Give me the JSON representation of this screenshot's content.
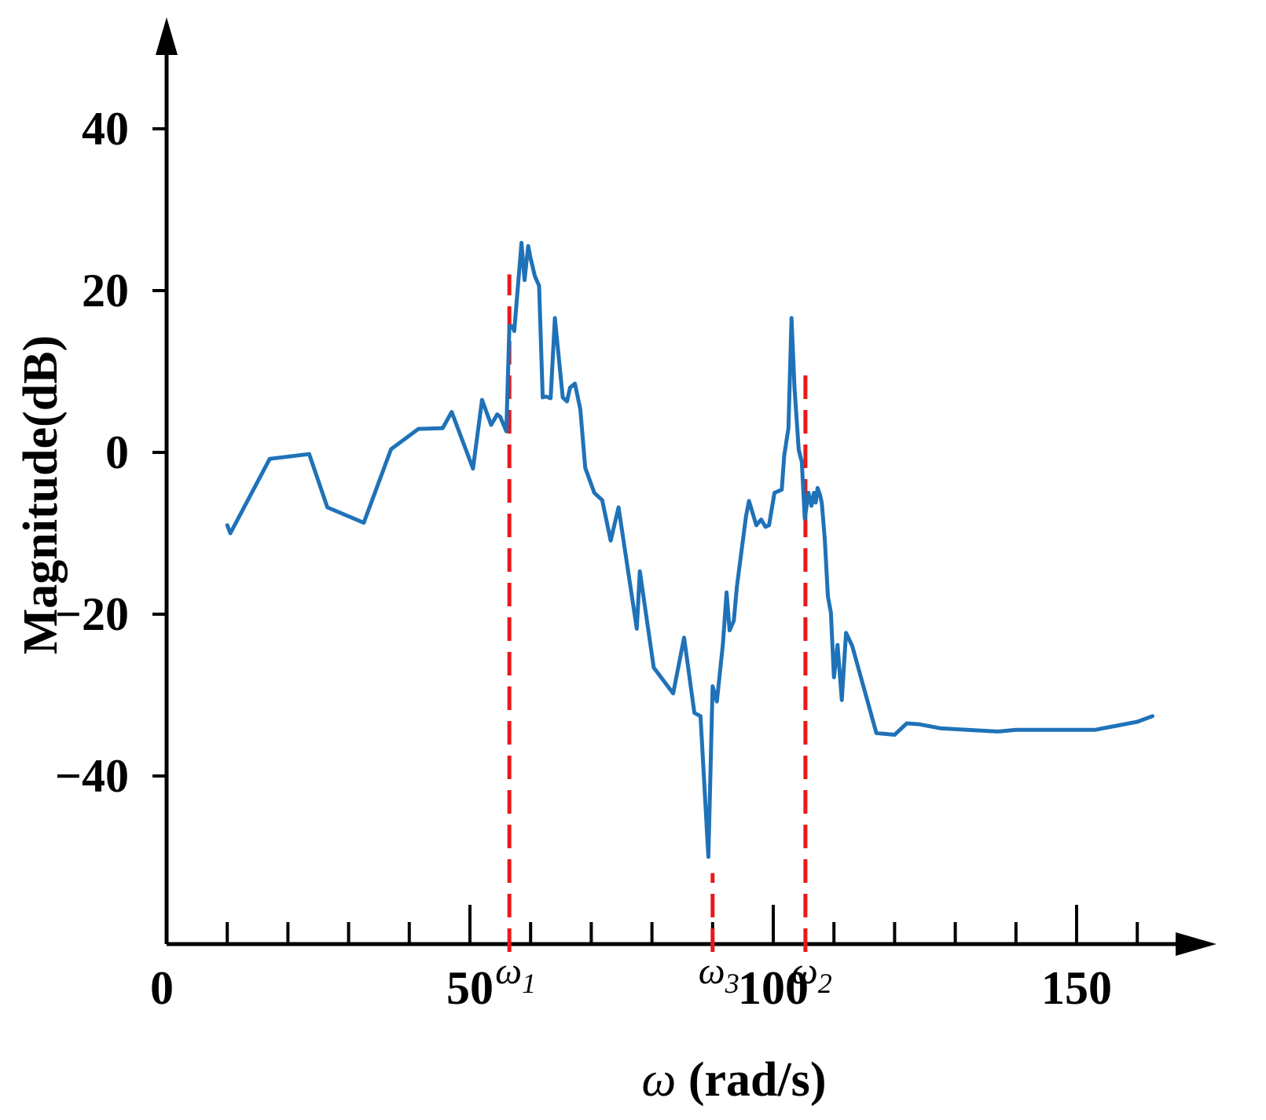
{
  "chart_data": {
    "type": "line",
    "title": "",
    "xlabel_symbol": "ω",
    "xlabel_unit": " (rad/s)",
    "ylabel": "Magnitude(dB)",
    "xlim": [
      0,
      165
    ],
    "ylim": [
      -60,
      50
    ],
    "x_ticks": [
      0,
      50,
      100,
      150
    ],
    "x_tick_labels": [
      "0",
      "50",
      "100",
      "150"
    ],
    "x_minor_step": 10,
    "y_ticks": [
      -40,
      -20,
      0,
      20,
      40
    ],
    "y_tick_labels": [
      "−40",
      "−20",
      "0",
      "20",
      "40"
    ],
    "grid": false,
    "colors": {
      "series": "#1f72b8",
      "markers": "#e8191b",
      "axis": "#000000"
    },
    "series": [
      {
        "x": [
          10.0,
          10.5,
          17.0,
          23.5,
          26.5,
          32.5,
          37.0,
          41.5,
          45.5,
          47.0,
          50.5,
          52.0,
          53.5,
          54.5,
          55.0,
          56.0,
          56.5,
          57.0,
          57.3,
          57.8,
          58.5,
          59.0,
          59.6,
          60.0,
          60.7,
          61.4,
          62.0,
          62.5,
          63.3,
          64.0,
          65.3,
          66.0,
          66.5,
          67.3,
          68.2,
          69.0,
          70.5,
          71.8,
          73.2,
          74.5,
          77.5,
          78.0,
          80.3,
          83.5,
          85.3,
          87.0,
          88.0,
          89.3,
          90.0,
          90.7,
          91.7,
          92.3,
          92.8,
          93.5,
          94.0,
          95.5,
          96.0,
          97.2,
          98.0,
          98.7,
          99.3,
          100.2,
          101.4,
          101.8,
          102.5,
          103.0,
          103.5,
          104.2,
          104.7,
          105.2,
          105.8,
          106.3,
          106.7,
          107.0,
          107.3,
          107.7,
          108.0,
          108.5,
          109.0,
          109.5,
          110.0,
          110.6,
          111.3,
          112.0,
          113.0,
          115.0,
          117.0,
          120.0,
          122.0,
          124.0,
          127.5,
          132.0,
          137.0,
          140.0,
          146.0,
          153.0,
          160.0,
          162.5
        ],
        "y": [
          -9,
          -10,
          -1,
          -0.5,
          -7,
          -9,
          0,
          3,
          3,
          5,
          -2,
          7,
          3.5,
          5,
          4.5,
          3,
          16,
          16,
          16,
          20,
          26,
          21,
          25.5,
          25,
          22,
          21,
          7,
          7,
          7,
          17,
          7,
          6.5,
          8,
          9,
          5,
          -2,
          -5,
          -6,
          -11,
          -7,
          -22,
          -15,
          -27,
          -30,
          -23,
          -32,
          -33,
          -50,
          -29,
          -31,
          -24,
          -17,
          -22,
          -21,
          -17,
          -8,
          -6,
          -9,
          -8,
          -9,
          -9,
          -5,
          -5,
          0,
          3,
          17,
          8,
          0,
          -1,
          -8,
          -5,
          -7,
          -5,
          -6,
          -4,
          -5,
          -6,
          -11,
          -18,
          -20,
          -28,
          -24,
          -31,
          -23,
          -24,
          -29,
          -35,
          -35,
          -33,
          -33,
          -34,
          -34,
          -34,
          -34,
          -34,
          -34,
          -33,
          -33
        ],
        "y_precise": [
          -9.0,
          -10.0,
          -0.8,
          -0.2,
          -6.8,
          -8.7,
          0.4,
          2.9,
          3.0,
          5.0,
          -2.0,
          6.5,
          3.4,
          4.7,
          4.4,
          2.6,
          15.6,
          15.6,
          15.0,
          19.5,
          25.9,
          21.3,
          25.5,
          24.0,
          21.8,
          20.6,
          6.8,
          6.9,
          6.7,
          16.6,
          6.8,
          6.3,
          8.0,
          8.5,
          5.3,
          -1.9,
          -5.0,
          -5.9,
          -10.9,
          -6.8,
          -21.8,
          -14.7,
          -26.6,
          -29.8,
          -22.9,
          -32.2,
          -32.6,
          -50.0,
          -28.9,
          -30.8,
          -23.7,
          -17.3,
          -22.0,
          -20.8,
          -16.6,
          -7.9,
          -6.0,
          -9.0,
          -8.3,
          -9.2,
          -9.0,
          -5.0,
          -4.6,
          -0.4,
          3.0,
          16.6,
          8.0,
          0.3,
          -1.2,
          -8.2,
          -5.0,
          -6.6,
          -5.0,
          -6.2,
          -4.4,
          -5.2,
          -6.3,
          -10.8,
          -17.8,
          -19.8,
          -27.8,
          -23.8,
          -30.6,
          -22.3,
          -23.9,
          -29.3,
          -34.7,
          -34.9,
          -33.5,
          -33.6,
          -34.1,
          -34.3,
          -34.5,
          -34.3,
          -34.3,
          -34.3,
          -33.3,
          -32.6
        ]
      }
    ],
    "markers": [
      {
        "x": 56.5,
        "label": "ω",
        "sub": "1",
        "y_top": 22
      },
      {
        "x": 90.0,
        "label": "ω",
        "sub": "3",
        "y_top": -52
      },
      {
        "x": 105.3,
        "label": "ω",
        "sub": "2",
        "y_top": 10
      }
    ]
  }
}
